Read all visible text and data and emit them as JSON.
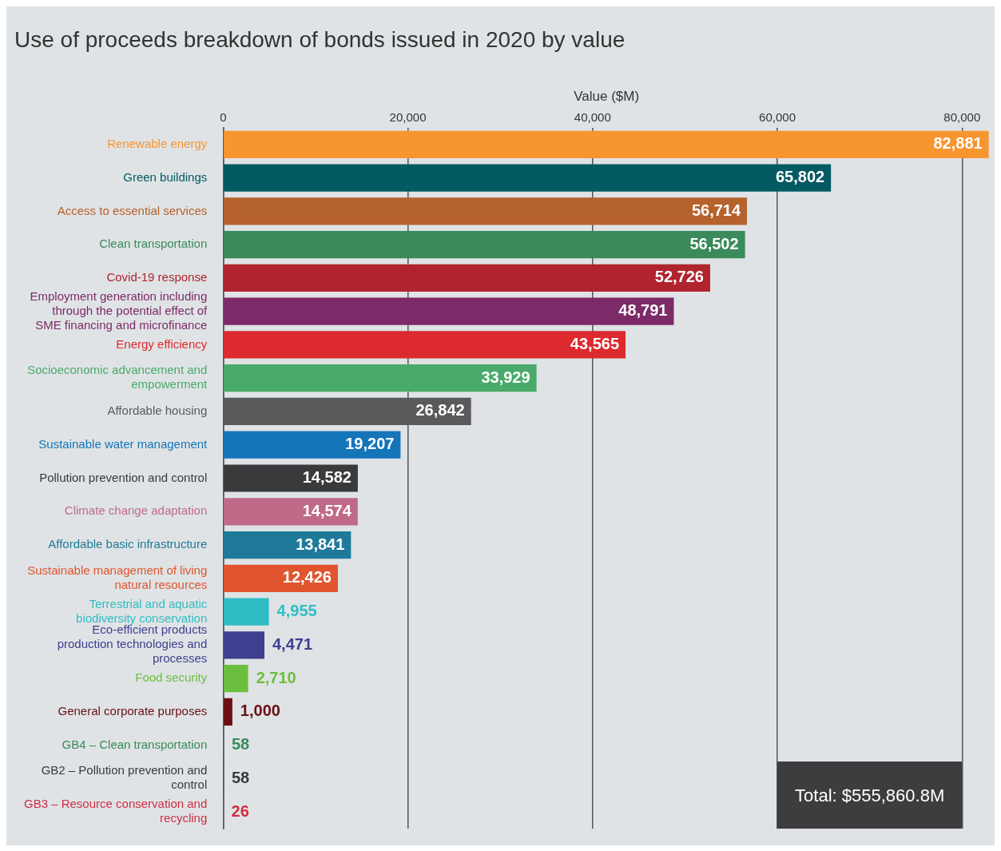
{
  "chart_data": {
    "type": "bar",
    "orientation": "horizontal",
    "title": "Use of proceeds breakdown of bonds issued in 2020 by value",
    "xlabel": "Value ($M)",
    "categories": [
      "Renewable energy",
      "Green buildings",
      "Access to essential services",
      "Clean transportation",
      "Covid-19 response",
      "Employment generation including through the potential effect of SME financing and microfinance",
      "Energy efficiency",
      "Socioeconomic advancement and empowerment",
      "Affordable housing",
      "Sustainable water management",
      "Pollution prevention and control",
      "Climate change adaptation",
      "Affordable basic infrastructure",
      "Sustainable management of living natural resources",
      "Terrestrial and aquatic biodiversity conservation",
      "Eco-efficient products production technologies and processes",
      "Food security",
      "General corporate purposes",
      "GB4 – Clean transportation",
      "GB2 – Pollution prevention and control",
      "GB3 – Resource conservation and recycling"
    ],
    "values": [
      82881,
      65802,
      56714,
      56502,
      52726,
      48791,
      43565,
      33929,
      26842,
      19207,
      14582,
      14574,
      13841,
      12426,
      4955,
      4471,
      2710,
      1000,
      58,
      58,
      26
    ],
    "colors": [
      "#f7952f",
      "#045a62",
      "#b5622d",
      "#3a8a5a",
      "#b0242e",
      "#7d2a68",
      "#dd2a2f",
      "#4aaa6a",
      "#5a5a5c",
      "#1475b9",
      "#3a3a3c",
      "#c06a8a",
      "#1f7a9a",
      "#e0552e",
      "#2ebdc4",
      "#3e3f8f",
      "#6cbf3e",
      "#6a0f14",
      "#3a8a5a",
      "#3a3a3c",
      "#d02e45"
    ],
    "value_labels": [
      "82,881",
      "65,802",
      "56,714",
      "56,502",
      "52,726",
      "48,791",
      "43,565",
      "33,929",
      "26,842",
      "19,207",
      "14,582",
      "14,574",
      "13,841",
      "12,426",
      "4,955",
      "4,471",
      "2,710",
      "1,000",
      "58",
      "58",
      "26"
    ],
    "xlim": [
      0,
      83000
    ],
    "xticks": [
      0,
      {
        "value": 20000,
        "label": "20,000"
      },
      {
        "value": 40000,
        "label": "40,000"
      },
      {
        "value": 60000,
        "label": "60,000"
      },
      {
        "value": 80000,
        "label": "80,000"
      }
    ],
    "grid": "x",
    "legend": false,
    "annotations": [
      "Total: $555,860.8M"
    ]
  }
}
